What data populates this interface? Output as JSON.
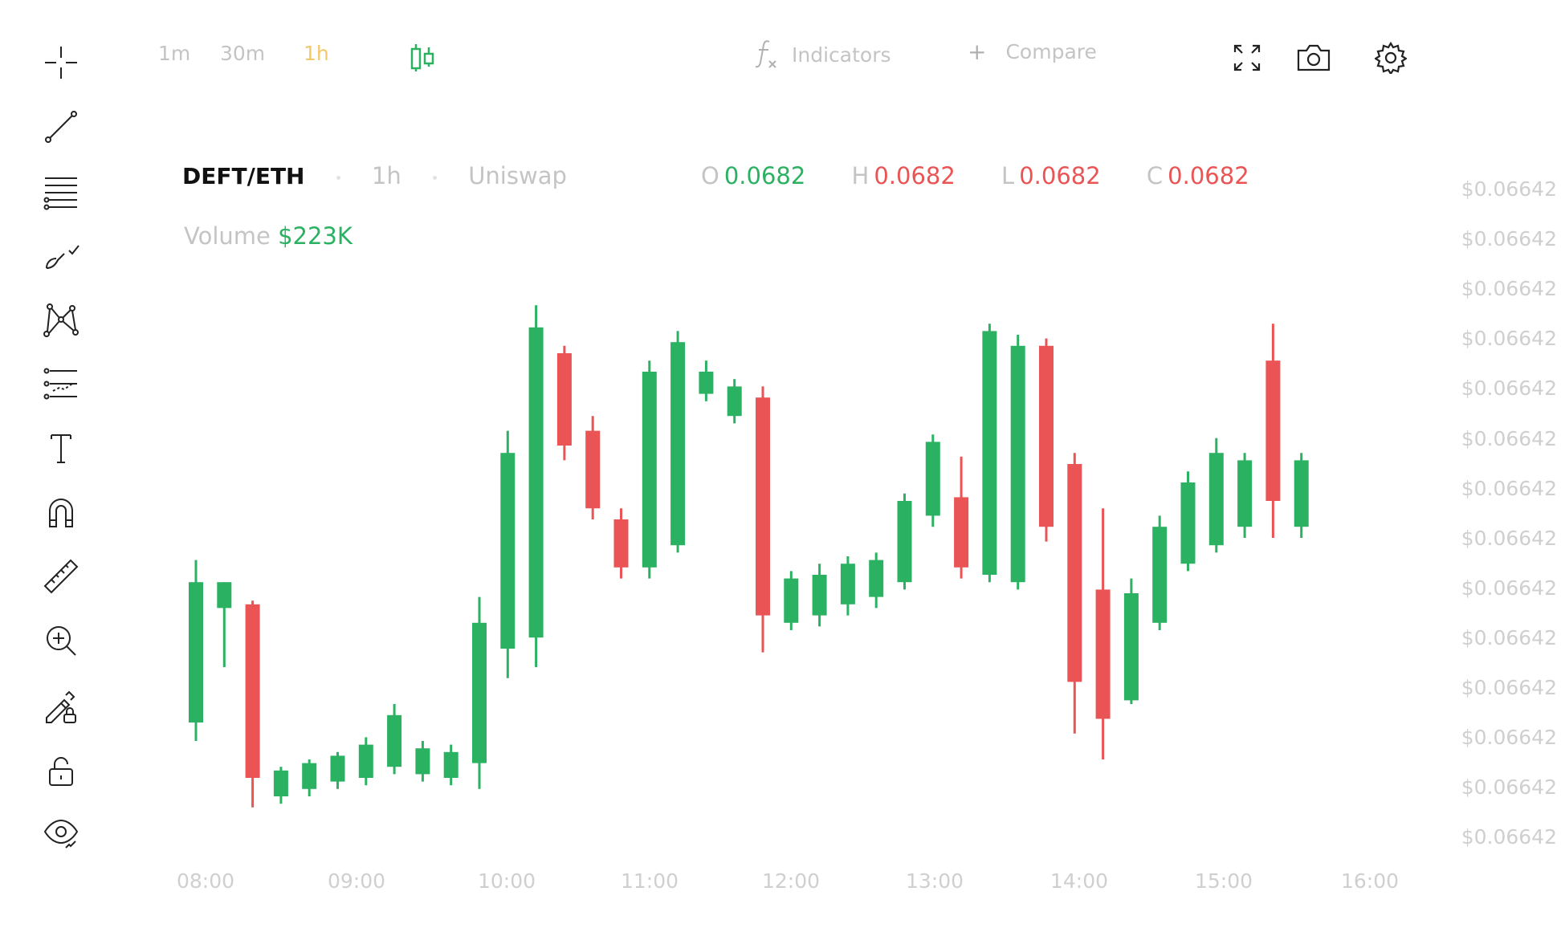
{
  "toolbar": {
    "timeframes": [
      "1m",
      "30m",
      "1h"
    ],
    "active_timeframe": "1h",
    "indicators_label": "Indicators",
    "compare_label": "Compare",
    "tools": [
      "crosshair-icon",
      "trend-line-icon",
      "fib-lines-icon",
      "brush-icon",
      "pattern-icon",
      "prediction-icon",
      "text-icon",
      "magnet-icon",
      "ruler-icon",
      "zoom-in-icon",
      "lock-drawing-icon",
      "lock-icon",
      "eye-icon"
    ]
  },
  "legend": {
    "pair": "DEFT/ETH",
    "interval": "1h",
    "exchange": "Uniswap",
    "open_label": "O",
    "open": "0.0682",
    "high_label": "H",
    "high": "0.0682",
    "low_label": "L",
    "low": "0.0682",
    "close_label": "C",
    "close": "0.0682",
    "volume_label": "Volume",
    "volume": "$223K"
  },
  "colors": {
    "up": "#2bb162",
    "down": "#ea5455",
    "accent": "#f4c76b"
  },
  "chart_data": {
    "type": "candlestick",
    "x_ticks": [
      "08:00",
      "09:00",
      "10:00",
      "11:00",
      "12:00",
      "13:00",
      "14:00",
      "15:00",
      "16:00"
    ],
    "price_ticks": [
      "$0.06642",
      "$0.06642",
      "$0.06642",
      "$0.06642",
      "$0.06642",
      "$0.06642",
      "$0.06642",
      "$0.06642",
      "$0.06642",
      "$0.06642",
      "$0.06642",
      "$0.06642",
      "$0.06642",
      "$0.06642"
    ],
    "y_scale": "price (relative units 0-100)",
    "candles": [
      {
        "o": 25,
        "h": 69,
        "l": 20,
        "c": 63
      },
      {
        "o": 56,
        "h": 63,
        "l": 40,
        "c": 63
      },
      {
        "o": 57,
        "h": 58,
        "l": 2,
        "c": 10
      },
      {
        "o": 5,
        "h": 13,
        "l": 3,
        "c": 12
      },
      {
        "o": 7,
        "h": 15,
        "l": 5,
        "c": 14
      },
      {
        "o": 9,
        "h": 17,
        "l": 7,
        "c": 16
      },
      {
        "o": 10,
        "h": 21,
        "l": 8,
        "c": 19
      },
      {
        "o": 13,
        "h": 30,
        "l": 11,
        "c": 27
      },
      {
        "o": 11,
        "h": 20,
        "l": 9,
        "c": 18
      },
      {
        "o": 10,
        "h": 19,
        "l": 8,
        "c": 17
      },
      {
        "o": 14,
        "h": 59,
        "l": 7,
        "c": 52
      },
      {
        "o": 45,
        "h": 104,
        "l": 37,
        "c": 98
      },
      {
        "o": 48,
        "h": 138,
        "l": 40,
        "c": 132
      },
      {
        "o": 125,
        "h": 127,
        "l": 96,
        "c": 100
      },
      {
        "o": 104,
        "h": 108,
        "l": 80,
        "c": 83
      },
      {
        "o": 80,
        "h": 83,
        "l": 64,
        "c": 67
      },
      {
        "o": 67,
        "h": 123,
        "l": 64,
        "c": 120
      },
      {
        "o": 73,
        "h": 131,
        "l": 71,
        "c": 128
      },
      {
        "o": 114,
        "h": 123,
        "l": 112,
        "c": 120
      },
      {
        "o": 108,
        "h": 118,
        "l": 106,
        "c": 116
      },
      {
        "o": 113,
        "h": 116,
        "l": 44,
        "c": 54
      },
      {
        "o": 52,
        "h": 66,
        "l": 50,
        "c": 64
      },
      {
        "o": 54,
        "h": 68,
        "l": 51,
        "c": 65
      },
      {
        "o": 57,
        "h": 70,
        "l": 54,
        "c": 68
      },
      {
        "o": 59,
        "h": 71,
        "l": 56,
        "c": 69
      },
      {
        "o": 63,
        "h": 87,
        "l": 61,
        "c": 85
      },
      {
        "o": 81,
        "h": 103,
        "l": 78,
        "c": 101
      },
      {
        "o": 86,
        "h": 97,
        "l": 64,
        "c": 67
      },
      {
        "o": 65,
        "h": 133,
        "l": 63,
        "c": 131
      },
      {
        "o": 63,
        "h": 130,
        "l": 61,
        "c": 127
      },
      {
        "o": 127,
        "h": 129,
        "l": 74,
        "c": 78
      },
      {
        "o": 95,
        "h": 98,
        "l": 22,
        "c": 36
      },
      {
        "o": 61,
        "h": 83,
        "l": 15,
        "c": 26
      },
      {
        "o": 31,
        "h": 64,
        "l": 30,
        "c": 60
      },
      {
        "o": 52,
        "h": 81,
        "l": 50,
        "c": 78
      },
      {
        "o": 68,
        "h": 93,
        "l": 66,
        "c": 90
      },
      {
        "o": 73,
        "h": 102,
        "l": 71,
        "c": 98
      },
      {
        "o": 78,
        "h": 98,
        "l": 75,
        "c": 96
      },
      {
        "o": 123,
        "h": 133,
        "l": 75,
        "c": 85
      },
      {
        "o": 78,
        "h": 98,
        "l": 75,
        "c": 96
      }
    ]
  }
}
